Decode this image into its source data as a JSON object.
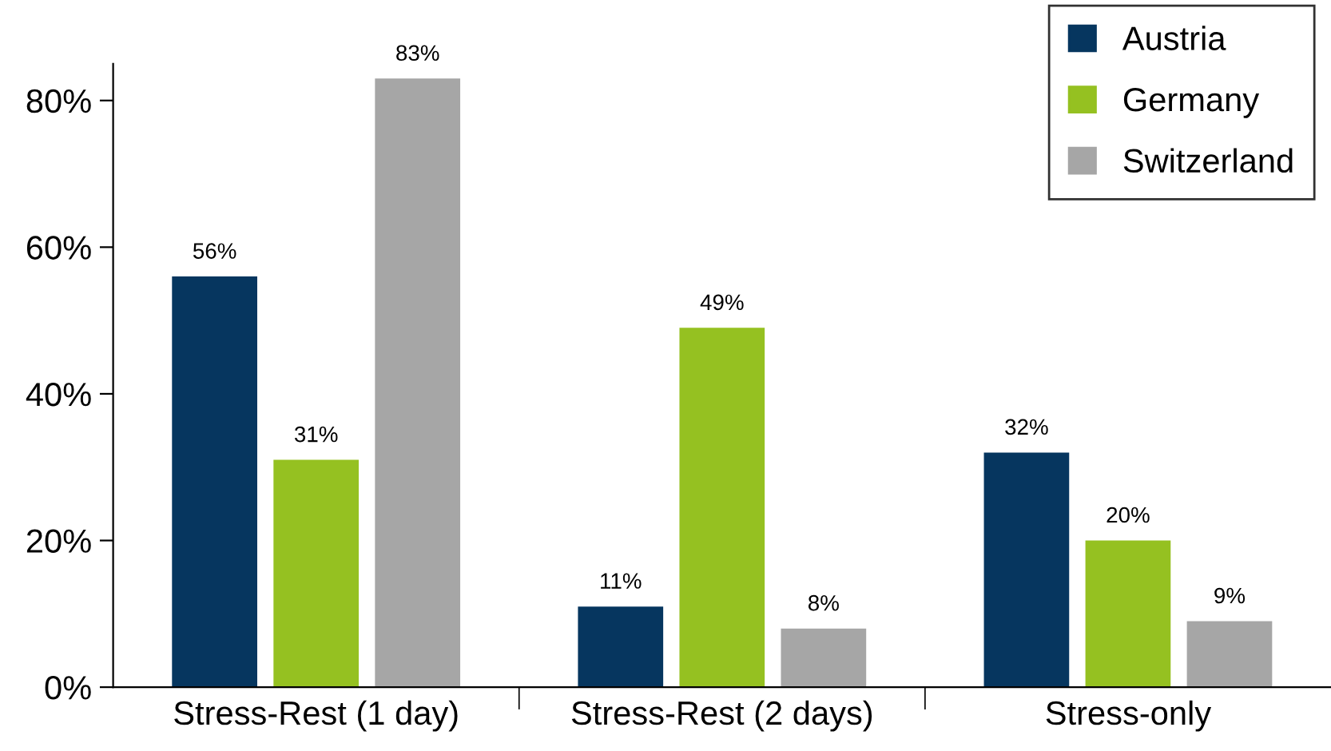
{
  "chart_data": {
    "type": "bar",
    "categories": [
      "Stress-Rest (1 day)",
      "Stress-Rest (2 days)",
      "Stress-only"
    ],
    "series": [
      {
        "name": "Austria",
        "color": "#06365f",
        "values": [
          56,
          11,
          32
        ],
        "value_labels": [
          "56%",
          "11%",
          "32%"
        ]
      },
      {
        "name": "Germany",
        "color": "#95c121",
        "values": [
          31,
          49,
          20
        ],
        "value_labels": [
          "31%",
          "49%",
          "20%"
        ]
      },
      {
        "name": "Switzerland",
        "color": "#a6a6a6",
        "values": [
          83,
          8,
          9
        ],
        "value_labels": [
          "83%",
          "8%",
          "9%"
        ]
      }
    ],
    "ylim": [
      0,
      85
    ],
    "yticks": [
      {
        "value": 0,
        "label": "0%"
      },
      {
        "value": 20,
        "label": "20%"
      },
      {
        "value": 40,
        "label": "40%"
      },
      {
        "value": 60,
        "label": "60%"
      },
      {
        "value": 80,
        "label": "80%"
      }
    ],
    "grid": false,
    "legend": "top right"
  }
}
